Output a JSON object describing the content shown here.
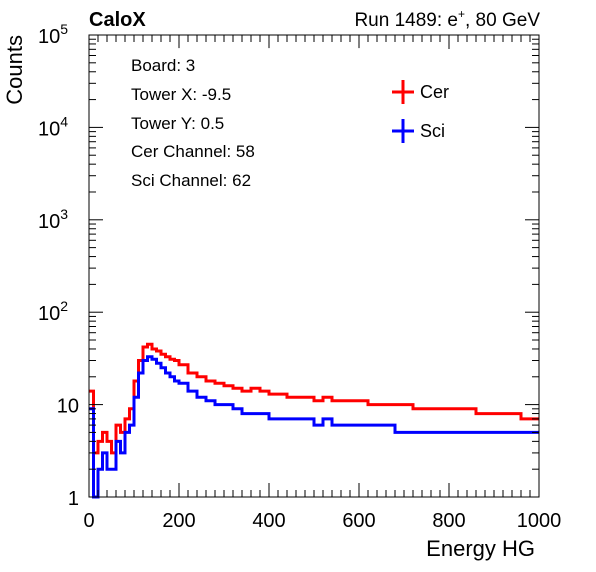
{
  "header": {
    "experiment": "CaloX",
    "run_prefix": "Run 1489: e",
    "run_sup": "+",
    "run_suffix": ", 80 GeV"
  },
  "info_box": {
    "lines": [
      "Board: 3",
      "Tower X: -9.5",
      "Tower Y: 0.5",
      "Cer Channel: 58",
      "Sci Channel: 62"
    ]
  },
  "chart_data": {
    "type": "line",
    "xlabel": "Energy HG",
    "ylabel": "Counts",
    "xlim": [
      0,
      1000
    ],
    "ylim": [
      1,
      100000
    ],
    "yscale": "log",
    "x_ticks": [
      "0",
      "200",
      "400",
      "600",
      "800",
      "1000"
    ],
    "y_ticks": [
      {
        "base": "1",
        "exp": ""
      },
      {
        "base": "10",
        "exp": ""
      },
      {
        "base": "10",
        "exp": "2"
      },
      {
        "base": "10",
        "exp": "3"
      },
      {
        "base": "10",
        "exp": "4"
      },
      {
        "base": "10",
        "exp": "5"
      }
    ],
    "legend_position": "top-right",
    "grid": false,
    "series": [
      {
        "name": "Cer",
        "color": "#ff0000",
        "x": [
          0,
          10,
          20,
          30,
          40,
          50,
          60,
          70,
          80,
          90,
          100,
          110,
          120,
          130,
          140,
          150,
          160,
          170,
          180,
          190,
          200,
          220,
          240,
          260,
          280,
          300,
          320,
          340,
          360,
          380,
          400,
          420,
          440,
          460,
          480,
          500,
          520,
          540,
          560,
          580,
          600,
          620,
          640,
          660,
          680,
          700,
          720,
          740,
          760,
          780,
          800,
          820,
          840,
          860,
          880,
          900,
          920,
          940,
          960,
          980,
          1000
        ],
        "y": [
          14,
          3,
          4,
          5,
          4,
          3,
          6,
          5,
          7,
          9,
          18,
          30,
          42,
          45,
          40,
          38,
          35,
          33,
          31,
          30,
          27,
          22,
          20,
          18,
          17,
          16,
          15,
          14,
          15,
          14,
          13,
          13,
          12,
          12,
          12,
          11,
          12,
          11,
          11,
          11,
          11,
          10,
          10,
          10,
          10,
          10,
          9,
          9,
          9,
          9,
          9,
          9,
          9,
          8,
          8,
          8,
          8,
          8,
          7,
          7,
          7
        ]
      },
      {
        "name": "Sci",
        "color": "#0000ff",
        "x": [
          0,
          10,
          20,
          30,
          40,
          50,
          60,
          70,
          80,
          90,
          100,
          110,
          120,
          130,
          140,
          150,
          160,
          170,
          180,
          190,
          200,
          220,
          240,
          260,
          280,
          300,
          320,
          340,
          360,
          380,
          400,
          420,
          440,
          460,
          480,
          500,
          520,
          540,
          560,
          580,
          600,
          620,
          640,
          660,
          680,
          700,
          720,
          740,
          760,
          780,
          800,
          820,
          840,
          860,
          880,
          900,
          920,
          940,
          960,
          980,
          1000
        ],
        "y": [
          9,
          1,
          2,
          3,
          2,
          2,
          4,
          3,
          5,
          6,
          12,
          22,
          30,
          33,
          31,
          28,
          25,
          22,
          20,
          18,
          17,
          14,
          12,
          11,
          10,
          10,
          9,
          8,
          8,
          8,
          7,
          7,
          7,
          7,
          7,
          6,
          7,
          6,
          6,
          6,
          6,
          6,
          6,
          6,
          5,
          5,
          5,
          5,
          5,
          5,
          5,
          5,
          5,
          5,
          5,
          5,
          5,
          5,
          5,
          5,
          5
        ]
      }
    ]
  }
}
